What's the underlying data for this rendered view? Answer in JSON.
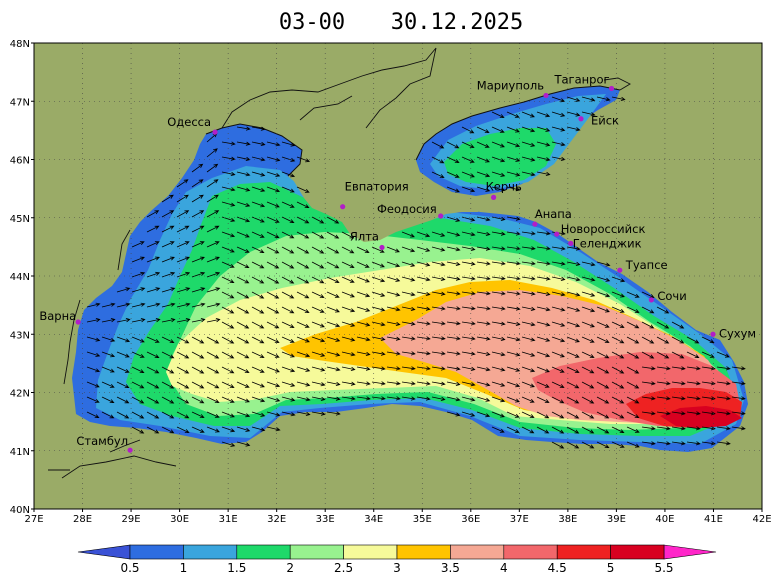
{
  "title": {
    "time": "03-00",
    "date": "30.12.2025"
  },
  "colors": {
    "land": "#9aab67",
    "bands": [
      "#2e6de0",
      "#3aa5dd",
      "#1ed96a",
      "#98f28f",
      "#f6fa9a",
      "#ffc400",
      "#f5a894",
      "#f2676b",
      "#ee2222",
      "#d80020"
    ],
    "under": "#3a52d6",
    "over": "#ff26c9",
    "city_marker": "#b11ec8"
  },
  "axes": {
    "lat_labels": [
      "48N",
      "47N",
      "46N",
      "45N",
      "44N",
      "43N",
      "42N",
      "41N",
      "40N"
    ],
    "lon_labels": [
      "27E",
      "28E",
      "29E",
      "30E",
      "31E",
      "32E",
      "33E",
      "34E",
      "35E",
      "36E",
      "37E",
      "38E",
      "39E",
      "40E",
      "41E",
      "42E"
    ]
  },
  "cities": [
    {
      "name": "Одесса",
      "lon": 30.73,
      "lat": 46.47
    },
    {
      "name": "Мариуполь",
      "lon": 37.55,
      "lat": 47.1
    },
    {
      "name": "Таганрог",
      "lon": 38.9,
      "lat": 47.22
    },
    {
      "name": "Ейск",
      "lon": 38.27,
      "lat": 46.7
    },
    {
      "name": "Евпатория",
      "lon": 33.36,
      "lat": 45.19
    },
    {
      "name": "Феодосия",
      "lon": 35.38,
      "lat": 45.03
    },
    {
      "name": "Керчь",
      "lon": 36.47,
      "lat": 45.35
    },
    {
      "name": "Анапа",
      "lon": 37.32,
      "lat": 44.89
    },
    {
      "name": "Новороссийск",
      "lon": 37.77,
      "lat": 44.72
    },
    {
      "name": "Геленджик",
      "lon": 38.06,
      "lat": 44.56
    },
    {
      "name": "Ялта",
      "lon": 34.17,
      "lat": 44.49
    },
    {
      "name": "Туапсе",
      "lon": 39.07,
      "lat": 44.1
    },
    {
      "name": "Сочи",
      "lon": 39.72,
      "lat": 43.59
    },
    {
      "name": "Сухум",
      "lon": 40.99,
      "lat": 43.0
    },
    {
      "name": "Варна",
      "lon": 27.91,
      "lat": 43.21
    },
    {
      "name": "Стамбул",
      "lon": 28.98,
      "lat": 41.01
    }
  ],
  "colorbar": {
    "labels": [
      "0.5",
      "1",
      "1.5",
      "2",
      "2.5",
      "3",
      "3.5",
      "4",
      "4.5",
      "5",
      "5.5"
    ]
  }
}
